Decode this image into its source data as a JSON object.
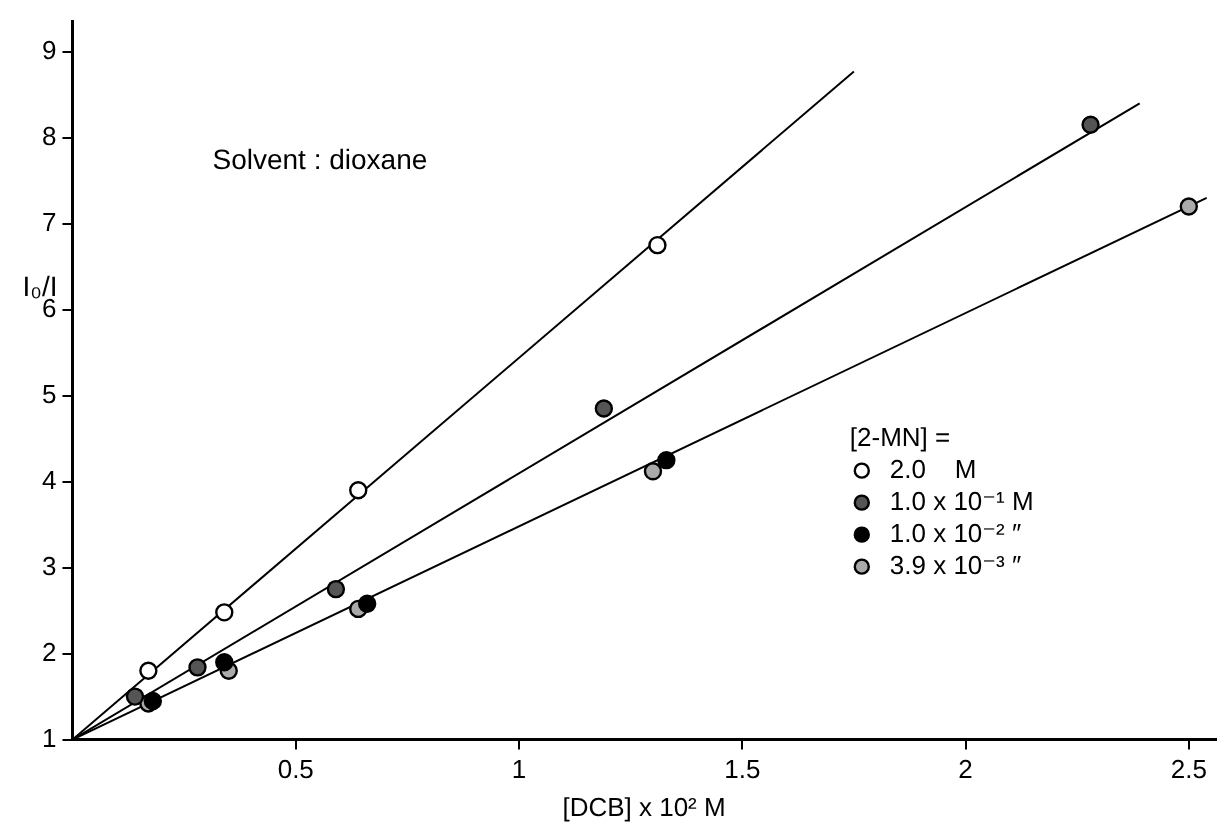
{
  "chart_data": {
    "type": "scatter",
    "xlabel": "[DCB] x 10² M",
    "ylabel": "I₀/I",
    "legend_title": "[2-MN] =",
    "legend": "right",
    "grid": false,
    "annotations": [
      "Solvent : dioxane"
    ],
    "xlim": [
      0,
      2.56
    ],
    "xticks": [
      0.5,
      1.0,
      1.5,
      2.0,
      2.5
    ],
    "ylim": [
      1,
      9.35
    ],
    "yticks": [
      1,
      2,
      3,
      4,
      5,
      6,
      7,
      8,
      9
    ],
    "series": [
      {
        "name": "2.0    M",
        "color": "#000000",
        "marker": "circle",
        "x": [
          0.17,
          0.34,
          0.64,
          1.31
        ],
        "values": [
          1.8,
          2.48,
          3.9,
          6.75
        ]
      },
      {
        "name": "1.0 x 10⁻¹ M",
        "color": "#000000",
        "marker": "circle",
        "x": [
          0.14,
          0.28,
          0.59,
          1.19,
          2.28
        ],
        "values": [
          1.5,
          1.84,
          2.75,
          4.85,
          8.15
        ]
      },
      {
        "name": "1.0 x 10⁻² ″",
        "color": "#000000",
        "marker": "circle",
        "x": [
          0.18,
          0.34,
          0.66,
          1.33
        ],
        "values": [
          1.45,
          1.9,
          2.58,
          4.25
        ]
      },
      {
        "name": "3.9 x 10⁻³ ″",
        "color": "#000000",
        "marker": "circle",
        "x": [
          0.17,
          0.35,
          0.64,
          1.3,
          2.5
        ],
        "values": [
          1.42,
          1.8,
          2.52,
          4.12,
          7.2
        ]
      },
      {
        "type": "line",
        "marker": "none",
        "color": "#000000",
        "x": [
          0,
          1.75
        ],
        "values": [
          1,
          8.77
        ]
      },
      {
        "type": "line",
        "marker": "none",
        "color": "#000000",
        "x": [
          0,
          2.39
        ],
        "values": [
          1,
          8.4
        ]
      },
      {
        "type": "line",
        "marker": "none",
        "color": "#000000",
        "x": [
          0,
          2.54
        ],
        "values": [
          1,
          7.3
        ]
      }
    ]
  }
}
